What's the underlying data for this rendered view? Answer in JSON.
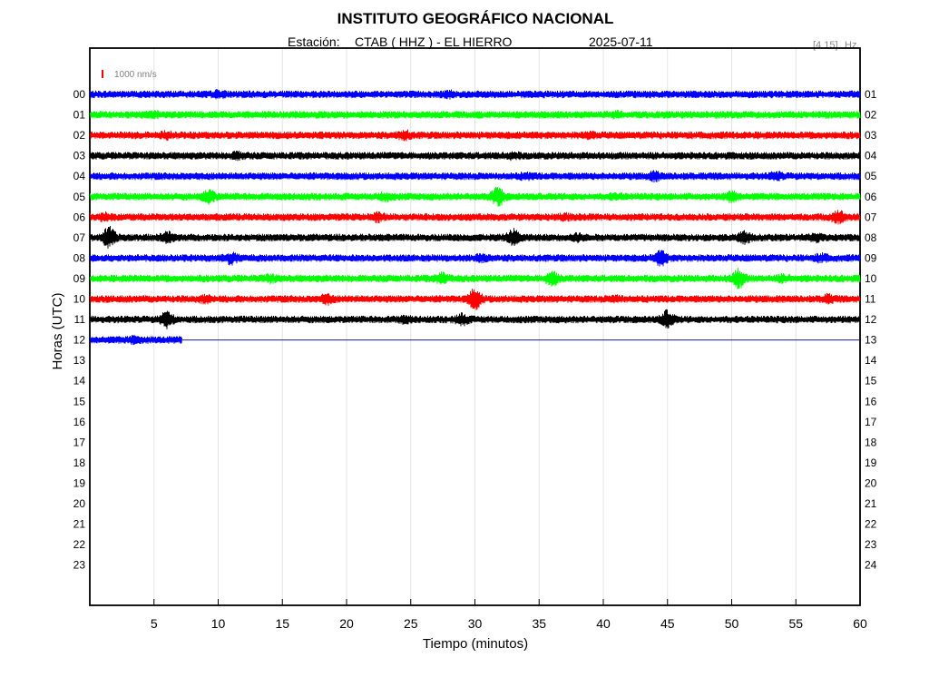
{
  "header": {
    "title": "INSTITUTO GEOGRÁFICO NACIONAL",
    "station_label": "Estación:",
    "station": "CTAB ( HHZ ) - EL HIERRO",
    "date": "2025-07-11",
    "freq_band": "[4 15]",
    "freq_unit": "Hz"
  },
  "scale": {
    "label": "1000 nm/s",
    "color": "#ff0000"
  },
  "chart_data": {
    "type": "line",
    "title": "INSTITUTO GEOGRÁFICO NACIONAL",
    "xlabel": "Tiempo (minutos)",
    "ylabel": "Horas (UTC)",
    "xlim": [
      0,
      60
    ],
    "x_ticks": [
      "5",
      "10",
      "15",
      "20",
      "25",
      "30",
      "35",
      "40",
      "45",
      "50",
      "55",
      "60"
    ],
    "x_tick_values": [
      5,
      10,
      15,
      20,
      25,
      30,
      35,
      40,
      45,
      50,
      55,
      60
    ],
    "left_labels": [
      "00",
      "01",
      "02",
      "03",
      "04",
      "05",
      "06",
      "07",
      "08",
      "09",
      "10",
      "11",
      "12",
      "13",
      "14",
      "15",
      "16",
      "17",
      "18",
      "19",
      "20",
      "21",
      "22",
      "23"
    ],
    "right_labels": [
      "01",
      "02",
      "03",
      "04",
      "05",
      "06",
      "07",
      "08",
      "09",
      "10",
      "11",
      "12",
      "13",
      "14",
      "15",
      "16",
      "17",
      "18",
      "19",
      "20",
      "21",
      "22",
      "23",
      "24"
    ],
    "grid": "vertical",
    "color_cycle": [
      "#0000ff",
      "#00ff00",
      "#ff0000",
      "#000000"
    ],
    "series": [
      {
        "hour": 0,
        "end_minute": 60,
        "events": [
          {
            "t": 10,
            "amp": 1.5
          },
          {
            "t": 28,
            "amp": 1.4
          }
        ]
      },
      {
        "hour": 1,
        "end_minute": 60,
        "events": [
          {
            "t": 5,
            "amp": 1.4
          },
          {
            "t": 41,
            "amp": 1.3
          }
        ]
      },
      {
        "hour": 2,
        "end_minute": 60,
        "events": [
          {
            "t": 6,
            "amp": 1.5
          },
          {
            "t": 24.5,
            "amp": 1.8
          },
          {
            "t": 39,
            "amp": 1.4
          }
        ]
      },
      {
        "hour": 3,
        "end_minute": 60,
        "events": [
          {
            "t": 11.5,
            "amp": 1.5
          },
          {
            "t": 33,
            "amp": 1.4
          }
        ]
      },
      {
        "hour": 4,
        "end_minute": 60,
        "events": [
          {
            "t": 34,
            "amp": 1.4
          },
          {
            "t": 44,
            "amp": 1.7
          },
          {
            "t": 53.5,
            "amp": 1.6
          }
        ]
      },
      {
        "hour": 5,
        "end_minute": 60,
        "events": [
          {
            "t": 9.3,
            "amp": 2.4
          },
          {
            "t": 23,
            "amp": 1.6
          },
          {
            "t": 31.8,
            "amp": 3.0
          },
          {
            "t": 41,
            "amp": 1.4
          },
          {
            "t": 50,
            "amp": 2.0
          }
        ]
      },
      {
        "hour": 6,
        "end_minute": 60,
        "events": [
          {
            "t": 1.2,
            "amp": 1.6
          },
          {
            "t": 22.5,
            "amp": 1.7
          },
          {
            "t": 37,
            "amp": 1.4
          },
          {
            "t": 58.3,
            "amp": 2.2
          }
        ]
      },
      {
        "hour": 7,
        "end_minute": 60,
        "events": [
          {
            "t": 1.5,
            "amp": 3.2
          },
          {
            "t": 6,
            "amp": 2.0
          },
          {
            "t": 33,
            "amp": 2.6
          },
          {
            "t": 38,
            "amp": 1.5
          },
          {
            "t": 51,
            "amp": 2.0
          },
          {
            "t": 56.5,
            "amp": 1.6
          }
        ]
      },
      {
        "hour": 8,
        "end_minute": 60,
        "events": [
          {
            "t": 11,
            "amp": 2.0
          },
          {
            "t": 30.5,
            "amp": 1.5
          },
          {
            "t": 44.5,
            "amp": 2.4
          },
          {
            "t": 57,
            "amp": 1.6
          }
        ]
      },
      {
        "hour": 9,
        "end_minute": 60,
        "events": [
          {
            "t": 14,
            "amp": 1.6
          },
          {
            "t": 27.5,
            "amp": 2.0
          },
          {
            "t": 36,
            "amp": 2.4
          },
          {
            "t": 50.5,
            "amp": 3.0
          },
          {
            "t": 54,
            "amp": 1.5
          }
        ]
      },
      {
        "hour": 10,
        "end_minute": 60,
        "events": [
          {
            "t": 9,
            "amp": 1.5
          },
          {
            "t": 18.5,
            "amp": 1.8
          },
          {
            "t": 30,
            "amp": 3.2
          },
          {
            "t": 41,
            "amp": 1.4
          },
          {
            "t": 57.5,
            "amp": 1.6
          }
        ]
      },
      {
        "hour": 11,
        "end_minute": 60,
        "events": [
          {
            "t": 6,
            "amp": 2.6
          },
          {
            "t": 24.5,
            "amp": 1.5
          },
          {
            "t": 29,
            "amp": 2.0
          },
          {
            "t": 45,
            "amp": 2.8
          }
        ]
      },
      {
        "hour": 12,
        "end_minute": 7.2,
        "events": [
          {
            "t": 3.6,
            "amp": 1.5
          }
        ]
      }
    ]
  }
}
